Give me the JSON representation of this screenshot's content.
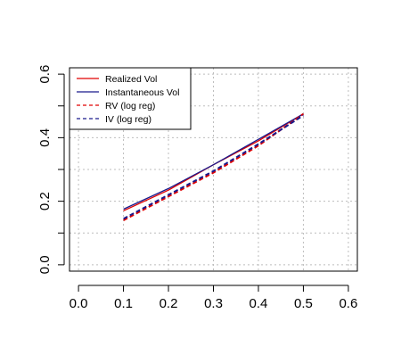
{
  "chart_data": {
    "type": "line",
    "title": "",
    "xlabel": "",
    "ylabel": "",
    "xlim": [
      -0.02,
      0.62
    ],
    "ylim": [
      -0.02,
      0.62
    ],
    "x_ticks": [
      0.0,
      0.1,
      0.2,
      0.3,
      0.4,
      0.5,
      0.6
    ],
    "y_ticks": [
      0.0,
      0.2,
      0.4,
      0.6
    ],
    "x_tick_labels": [
      "0.0",
      "0.1",
      "0.2",
      "0.3",
      "0.4",
      "0.5",
      "0.6"
    ],
    "y_tick_labels": [
      "0.0",
      "0.2",
      "0.4",
      "0.6"
    ],
    "grid": true,
    "legend_position": "top-left",
    "series": [
      {
        "name": "Realized Vol",
        "color": "#e00000",
        "line_style": "solid",
        "x": [
          0.1,
          0.2,
          0.3,
          0.4,
          0.5
        ],
        "y": [
          0.17,
          0.235,
          0.315,
          0.39,
          0.475
        ]
      },
      {
        "name": "Instantaneous Vol",
        "color": "#1a1a8c",
        "line_style": "solid",
        "x": [
          0.1,
          0.2,
          0.3,
          0.4,
          0.5
        ],
        "y": [
          0.175,
          0.24,
          0.315,
          0.395,
          0.475
        ]
      },
      {
        "name": "RV (log reg)",
        "color": "#e00000",
        "line_style": "dashed",
        "x": [
          0.1,
          0.2,
          0.3,
          0.4,
          0.5
        ],
        "y": [
          0.14,
          0.215,
          0.29,
          0.375,
          0.475
        ]
      },
      {
        "name": "IV (log reg)",
        "color": "#1a1a8c",
        "line_style": "dashed",
        "x": [
          0.1,
          0.2,
          0.3,
          0.4,
          0.5
        ],
        "y": [
          0.145,
          0.22,
          0.295,
          0.38,
          0.47
        ]
      }
    ]
  }
}
